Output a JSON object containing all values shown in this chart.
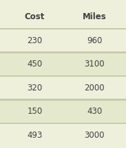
{
  "headers": [
    "Cost",
    "Miles"
  ],
  "rows": [
    [
      "230",
      "960"
    ],
    [
      "450",
      "3100"
    ],
    [
      "320",
      "2000"
    ],
    [
      "150",
      "430"
    ],
    [
      "493",
      "3000"
    ]
  ],
  "bg_color": "#eef0dc",
  "row_color_light": "#eef0dc",
  "row_color_dark": "#e4e8cc",
  "separator_color": "#c8ccaa",
  "text_color": "#404040",
  "header_font_size": 8.5,
  "data_font_size": 8.5,
  "fig_width": 1.83,
  "fig_height": 2.16,
  "dpi": 100
}
